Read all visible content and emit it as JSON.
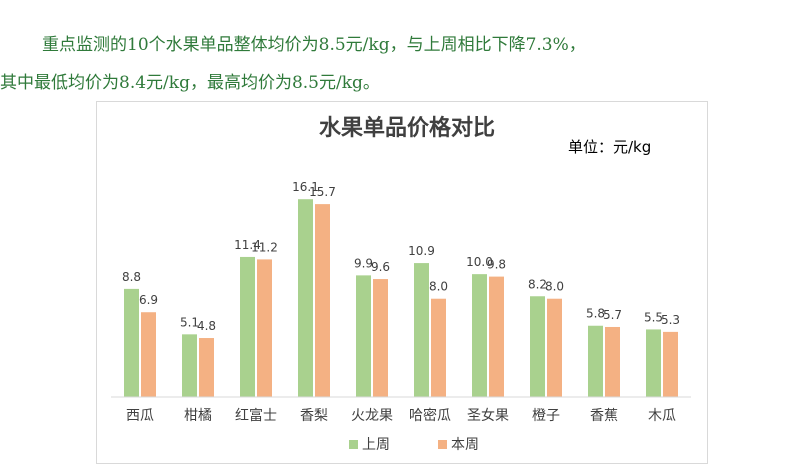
{
  "paragraph": {
    "line1": "重点监测的10个水果单品整体均价为8.5元/kg，与上周相比下降7.3%，",
    "line2": "其中最低均价为8.4元/kg，最高均价为8.5元/kg。"
  },
  "chart_data": {
    "type": "bar",
    "title": "水果单品价格对比",
    "unit_label": "单位：元/kg",
    "categories": [
      "西瓜",
      "柑橘",
      "红富士",
      "香梨",
      "火龙果",
      "哈密瓜",
      "圣女果",
      "橙子",
      "香蕉",
      "木瓜"
    ],
    "series": [
      {
        "name": "上周",
        "color": "#a9d18e",
        "values": [
          8.8,
          5.1,
          11.4,
          16.1,
          9.9,
          10.9,
          10.0,
          8.2,
          5.8,
          5.5
        ]
      },
      {
        "name": "本周",
        "color": "#f4b183",
        "values": [
          6.9,
          4.8,
          11.2,
          15.7,
          9.6,
          8.0,
          9.8,
          8.0,
          5.7,
          5.3
        ]
      }
    ],
    "ylim": [
      0,
      17.5
    ],
    "legend_position": "bottom",
    "grid": false
  }
}
